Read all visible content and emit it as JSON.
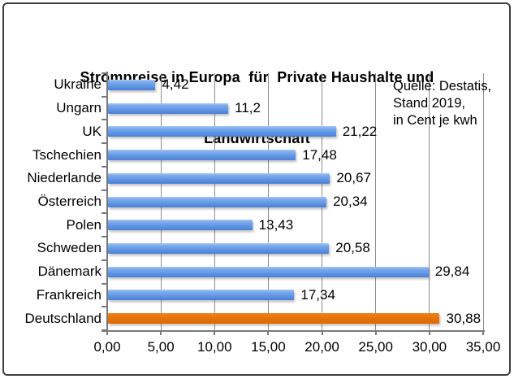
{
  "chart": {
    "title_lines": [
      "Strompreise in Europa  für  Private Haushalte und",
      "Landwirtschaft"
    ],
    "annotation_lines": [
      "Quelle: Destatis,",
      "Stand 2019,",
      "in Cent je kwh"
    ]
  },
  "chart_data": {
    "type": "bar",
    "orientation": "horizontal",
    "title": "Strompreise in Europa für Private Haushalte und Landwirtschaft",
    "categories": [
      "Ukraine",
      "Ungarn",
      "UK",
      "Tschechien",
      "Niederlande",
      "Österreich",
      "Polen",
      "Schweden",
      "Dänemark",
      "Frankreich",
      "Deutschland"
    ],
    "values": [
      4.42,
      11.2,
      21.22,
      17.48,
      20.67,
      20.34,
      13.43,
      20.58,
      29.84,
      17.34,
      30.88
    ],
    "value_labels": [
      "4,42",
      "11,2",
      "21,22",
      "17,48",
      "20,67",
      "20,34",
      "13,43",
      "20,58",
      "29,84",
      "17,34",
      "30,88"
    ],
    "unit": "Cent je kwh",
    "annotation": "Quelle: Destatis, Stand 2019, in Cent je kwh",
    "xlim": [
      0,
      35
    ],
    "xtick_values": [
      0,
      5,
      10,
      15,
      20,
      25,
      30,
      35
    ],
    "xtick_labels": [
      "0,00",
      "5,00",
      "10,00",
      "15,00",
      "20,00",
      "25,00",
      "30,00",
      "35,00"
    ],
    "highlight_index": 10,
    "grid": true,
    "legend": false,
    "colors": {
      "bar_default": "#6D9DE8",
      "bar_highlight": "#E6740E",
      "gridline": "#8C8C8C",
      "axis": "#7A7A7A",
      "border": "#3E3E3E",
      "text": "#000000"
    }
  }
}
